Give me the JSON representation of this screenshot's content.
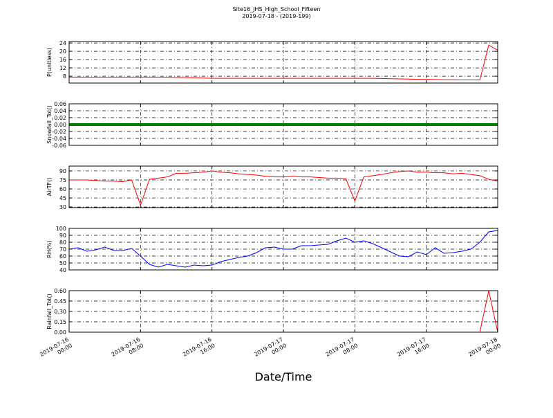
{
  "figure": {
    "title": "Site16_JHS_High_School_Fifteen",
    "subtitle": "2019-07-18 - (2019-199)",
    "xlabel": "Date/Time"
  },
  "chart_data": [
    {
      "type": "line",
      "ylabel": "P(unitless)",
      "color": "#ff0000",
      "ylim": [
        4.7,
        24.7
      ],
      "yticks": [
        8,
        12,
        16,
        20,
        24
      ],
      "grid": true,
      "xlim": [
        "2019-07-16 00:00",
        "2019-07-18 00:00"
      ],
      "xticks": [
        "2019-07-16 00:00",
        "2019-07-16 08:00",
        "2019-07-16 16:00",
        "2019-07-17 00:00",
        "2019-07-17 08:00",
        "2019-07-17 16:00",
        "2019-07-18 00:00"
      ],
      "x": [
        "2019-07-16 00:00",
        "2019-07-16 01:00",
        "2019-07-16 02:00",
        "2019-07-16 03:00",
        "2019-07-16 04:00",
        "2019-07-16 05:00",
        "2019-07-16 06:00",
        "2019-07-16 07:00",
        "2019-07-16 08:00",
        "2019-07-16 09:00",
        "2019-07-16 10:00",
        "2019-07-16 11:00",
        "2019-07-16 12:00",
        "2019-07-16 13:00",
        "2019-07-16 14:00",
        "2019-07-16 15:00",
        "2019-07-16 16:00",
        "2019-07-16 17:00",
        "2019-07-16 18:00",
        "2019-07-16 19:00",
        "2019-07-16 20:00",
        "2019-07-16 21:00",
        "2019-07-16 22:00",
        "2019-07-16 23:00",
        "2019-07-17 00:00",
        "2019-07-17 01:00",
        "2019-07-17 02:00",
        "2019-07-17 03:00",
        "2019-07-17 04:00",
        "2019-07-17 05:00",
        "2019-07-17 06:00",
        "2019-07-17 07:00",
        "2019-07-17 08:00",
        "2019-07-17 09:00",
        "2019-07-17 10:00",
        "2019-07-17 11:00",
        "2019-07-17 12:00",
        "2019-07-17 13:00",
        "2019-07-17 14:00",
        "2019-07-17 15:00",
        "2019-07-17 16:00",
        "2019-07-17 17:00",
        "2019-07-17 18:00",
        "2019-07-17 19:00",
        "2019-07-17 20:00",
        "2019-07-17 21:00",
        "2019-07-17 22:00",
        "2019-07-17 23:00",
        "2019-07-18 00:00"
      ],
      "values": [
        7.5,
        7.5,
        7.5,
        7.5,
        7.5,
        7.5,
        7.5,
        7.5,
        7.5,
        7.5,
        7.5,
        7.5,
        7.4,
        7.3,
        7.2,
        7.1,
        7.0,
        7.0,
        7.0,
        7.0,
        7.0,
        7.0,
        7.0,
        7.0,
        7.0,
        7.0,
        7.0,
        7.0,
        7.0,
        7.0,
        7.0,
        7.0,
        7.0,
        7.0,
        7.0,
        6.9,
        6.8,
        6.7,
        6.6,
        6.5,
        6.5,
        6.4,
        6.3,
        6.3,
        6.2,
        6.2,
        6.2,
        23,
        20.5
      ]
    },
    {
      "type": "line",
      "ylabel": "Snowfall_Tot()",
      "color": "#008000",
      "ylim": [
        -0.06,
        0.06
      ],
      "yticks": [
        -0.06,
        -0.04,
        -0.02,
        {
          "value": 0,
          "label": "0.00"
        },
        0.02,
        0.04,
        0.06
      ],
      "grid": true,
      "xlim": [
        "2019-07-16 00:00",
        "2019-07-18 00:00"
      ],
      "xticks": [
        "2019-07-16 00:00",
        "2019-07-16 08:00",
        "2019-07-16 16:00",
        "2019-07-17 00:00",
        "2019-07-17 08:00",
        "2019-07-17 16:00",
        "2019-07-18 00:00"
      ],
      "x": [
        "2019-07-16 00:00",
        "2019-07-16 01:00",
        "2019-07-16 02:00",
        "2019-07-16 03:00",
        "2019-07-16 04:00",
        "2019-07-16 05:00",
        "2019-07-16 06:00",
        "2019-07-16 07:00",
        "2019-07-16 08:00",
        "2019-07-16 09:00",
        "2019-07-16 10:00",
        "2019-07-16 11:00",
        "2019-07-16 12:00",
        "2019-07-16 13:00",
        "2019-07-16 14:00",
        "2019-07-16 15:00",
        "2019-07-16 16:00",
        "2019-07-16 17:00",
        "2019-07-16 18:00",
        "2019-07-16 19:00",
        "2019-07-16 20:00",
        "2019-07-16 21:00",
        "2019-07-16 22:00",
        "2019-07-16 23:00",
        "2019-07-17 00:00",
        "2019-07-17 01:00",
        "2019-07-17 02:00",
        "2019-07-17 03:00",
        "2019-07-17 04:00",
        "2019-07-17 05:00",
        "2019-07-17 06:00",
        "2019-07-17 07:00",
        "2019-07-17 08:00",
        "2019-07-17 09:00",
        "2019-07-17 10:00",
        "2019-07-17 11:00",
        "2019-07-17 12:00",
        "2019-07-17 13:00",
        "2019-07-17 14:00",
        "2019-07-17 15:00",
        "2019-07-17 16:00",
        "2019-07-17 17:00",
        "2019-07-17 18:00",
        "2019-07-17 19:00",
        "2019-07-17 20:00",
        "2019-07-17 21:00",
        "2019-07-17 22:00",
        "2019-07-17 23:00",
        "2019-07-18 00:00"
      ],
      "values": [
        0,
        0,
        0,
        0,
        0,
        0,
        0,
        0,
        0,
        0,
        0,
        0,
        0,
        0,
        0,
        0,
        0,
        0,
        0,
        0,
        0,
        0,
        0,
        0,
        0,
        0,
        0,
        0,
        0,
        0,
        0,
        0,
        0,
        0,
        0,
        0,
        0,
        0,
        0,
        0,
        0,
        0,
        0,
        0,
        0,
        0,
        0,
        0,
        0
      ]
    },
    {
      "type": "line",
      "ylabel": "AirTF()",
      "color": "#ff0000",
      "ylim": [
        29,
        98
      ],
      "yticks": [
        30,
        45,
        60,
        75,
        90
      ],
      "grid": true,
      "xlim": [
        "2019-07-16 00:00",
        "2019-07-18 00:00"
      ],
      "xticks": [
        "2019-07-16 00:00",
        "2019-07-16 08:00",
        "2019-07-16 16:00",
        "2019-07-17 00:00",
        "2019-07-17 08:00",
        "2019-07-17 16:00",
        "2019-07-18 00:00"
      ],
      "x": [
        "2019-07-16 00:00",
        "2019-07-16 01:00",
        "2019-07-16 02:00",
        "2019-07-16 03:00",
        "2019-07-16 04:00",
        "2019-07-16 05:00",
        "2019-07-16 06:00",
        "2019-07-16 07:00",
        "2019-07-16 08:00",
        "2019-07-16 09:00",
        "2019-07-16 10:00",
        "2019-07-16 11:00",
        "2019-07-16 12:00",
        "2019-07-16 13:00",
        "2019-07-16 14:00",
        "2019-07-16 15:00",
        "2019-07-16 16:00",
        "2019-07-16 17:00",
        "2019-07-16 18:00",
        "2019-07-16 19:00",
        "2019-07-16 20:00",
        "2019-07-16 21:00",
        "2019-07-16 22:00",
        "2019-07-16 23:00",
        "2019-07-17 00:00",
        "2019-07-17 01:00",
        "2019-07-17 02:00",
        "2019-07-17 03:00",
        "2019-07-17 04:00",
        "2019-07-17 05:00",
        "2019-07-17 06:00",
        "2019-07-17 07:00",
        "2019-07-17 08:00",
        "2019-07-17 09:00",
        "2019-07-17 10:00",
        "2019-07-17 11:00",
        "2019-07-17 12:00",
        "2019-07-17 13:00",
        "2019-07-17 14:00",
        "2019-07-17 15:00",
        "2019-07-17 16:00",
        "2019-07-17 17:00",
        "2019-07-17 18:00",
        "2019-07-17 19:00",
        "2019-07-17 20:00",
        "2019-07-17 21:00",
        "2019-07-17 22:00",
        "2019-07-17 23:00",
        "2019-07-18 00:00"
      ],
      "values": [
        75,
        75,
        75,
        74,
        73,
        73,
        72,
        75,
        33,
        76,
        78,
        80,
        86,
        86,
        87,
        88,
        90,
        88,
        87,
        85,
        84,
        83,
        81,
        80,
        80,
        81,
        80,
        80,
        79,
        78,
        78,
        77,
        40,
        80,
        82,
        84,
        87,
        89,
        90,
        88,
        88,
        87,
        87,
        85,
        86,
        84,
        82,
        76,
        73
      ]
    },
    {
      "type": "line",
      "ylabel": "RH(%)",
      "color": "#0000ff",
      "ylim": [
        40,
        100
      ],
      "yticks": [
        40,
        50,
        60,
        70,
        80,
        90,
        100
      ],
      "grid": true,
      "xlim": [
        "2019-07-16 00:00",
        "2019-07-18 00:00"
      ],
      "xticks": [
        "2019-07-16 00:00",
        "2019-07-16 08:00",
        "2019-07-16 16:00",
        "2019-07-17 00:00",
        "2019-07-17 08:00",
        "2019-07-17 16:00",
        "2019-07-18 00:00"
      ],
      "x": [
        "2019-07-16 00:00",
        "2019-07-16 01:00",
        "2019-07-16 02:00",
        "2019-07-16 03:00",
        "2019-07-16 04:00",
        "2019-07-16 05:00",
        "2019-07-16 06:00",
        "2019-07-16 07:00",
        "2019-07-16 08:00",
        "2019-07-16 09:00",
        "2019-07-16 10:00",
        "2019-07-16 11:00",
        "2019-07-16 12:00",
        "2019-07-16 13:00",
        "2019-07-16 14:00",
        "2019-07-16 15:00",
        "2019-07-16 16:00",
        "2019-07-16 17:00",
        "2019-07-16 18:00",
        "2019-07-16 19:00",
        "2019-07-16 20:00",
        "2019-07-16 21:00",
        "2019-07-16 22:00",
        "2019-07-16 23:00",
        "2019-07-17 00:00",
        "2019-07-17 01:00",
        "2019-07-17 02:00",
        "2019-07-17 03:00",
        "2019-07-17 04:00",
        "2019-07-17 05:00",
        "2019-07-17 06:00",
        "2019-07-17 07:00",
        "2019-07-17 08:00",
        "2019-07-17 09:00",
        "2019-07-17 10:00",
        "2019-07-17 11:00",
        "2019-07-17 12:00",
        "2019-07-17 13:00",
        "2019-07-17 14:00",
        "2019-07-17 15:00",
        "2019-07-17 16:00",
        "2019-07-17 17:00",
        "2019-07-17 18:00",
        "2019-07-17 19:00",
        "2019-07-17 20:00",
        "2019-07-17 21:00",
        "2019-07-17 22:00",
        "2019-07-17 23:00",
        "2019-07-18 00:00"
      ],
      "values": [
        70,
        72,
        67,
        69,
        73,
        68,
        68,
        71,
        60,
        48,
        44,
        48,
        46,
        44,
        47,
        46,
        47,
        52,
        55,
        58,
        60,
        65,
        72,
        73,
        70,
        70,
        75,
        75,
        76,
        77,
        82,
        86,
        80,
        82,
        78,
        72,
        66,
        60,
        59,
        66,
        62,
        72,
        64,
        65,
        67,
        70,
        80,
        95,
        97
      ]
    },
    {
      "type": "line",
      "ylabel": "Rainfall_Tot()",
      "color": "#ff0000",
      "ylim": [
        0,
        0.6
      ],
      "yticks": [
        {
          "value": 0,
          "label": "0.00"
        },
        0.15,
        {
          "value": 0.3,
          "label": "0.30"
        },
        0.45,
        {
          "value": 0.6,
          "label": "0.60"
        }
      ],
      "grid": true,
      "xlim": [
        "2019-07-16 00:00",
        "2019-07-18 00:00"
      ],
      "xticks": [
        "2019-07-16 00:00",
        "2019-07-16 08:00",
        "2019-07-16 16:00",
        "2019-07-17 00:00",
        "2019-07-17 08:00",
        "2019-07-17 16:00",
        "2019-07-18 00:00"
      ],
      "x": [
        "2019-07-16 00:00",
        "2019-07-16 01:00",
        "2019-07-16 02:00",
        "2019-07-16 03:00",
        "2019-07-16 04:00",
        "2019-07-16 05:00",
        "2019-07-16 06:00",
        "2019-07-16 07:00",
        "2019-07-16 08:00",
        "2019-07-16 09:00",
        "2019-07-16 10:00",
        "2019-07-16 11:00",
        "2019-07-16 12:00",
        "2019-07-16 13:00",
        "2019-07-16 14:00",
        "2019-07-16 15:00",
        "2019-07-16 16:00",
        "2019-07-16 17:00",
        "2019-07-16 18:00",
        "2019-07-16 19:00",
        "2019-07-16 20:00",
        "2019-07-16 21:00",
        "2019-07-16 22:00",
        "2019-07-16 23:00",
        "2019-07-17 00:00",
        "2019-07-17 01:00",
        "2019-07-17 02:00",
        "2019-07-17 03:00",
        "2019-07-17 04:00",
        "2019-07-17 05:00",
        "2019-07-17 06:00",
        "2019-07-17 07:00",
        "2019-07-17 08:00",
        "2019-07-17 09:00",
        "2019-07-17 10:00",
        "2019-07-17 11:00",
        "2019-07-17 12:00",
        "2019-07-17 13:00",
        "2019-07-17 14:00",
        "2019-07-17 15:00",
        "2019-07-17 16:00",
        "2019-07-17 17:00",
        "2019-07-17 18:00",
        "2019-07-17 19:00",
        "2019-07-17 20:00",
        "2019-07-17 21:00",
        "2019-07-17 22:00",
        "2019-07-17 23:00",
        "2019-07-18 00:00"
      ],
      "values": [
        0,
        0,
        0,
        0,
        0,
        0,
        0,
        0,
        0,
        0,
        0,
        0,
        0,
        0,
        0,
        0,
        0,
        0,
        0,
        0,
        0,
        0,
        0,
        0,
        0,
        0,
        0,
        0,
        0,
        0,
        0,
        0,
        0,
        0,
        0,
        0,
        0,
        0,
        0,
        0,
        0,
        0,
        0,
        0,
        0,
        0,
        0,
        0.6,
        0
      ]
    }
  ]
}
